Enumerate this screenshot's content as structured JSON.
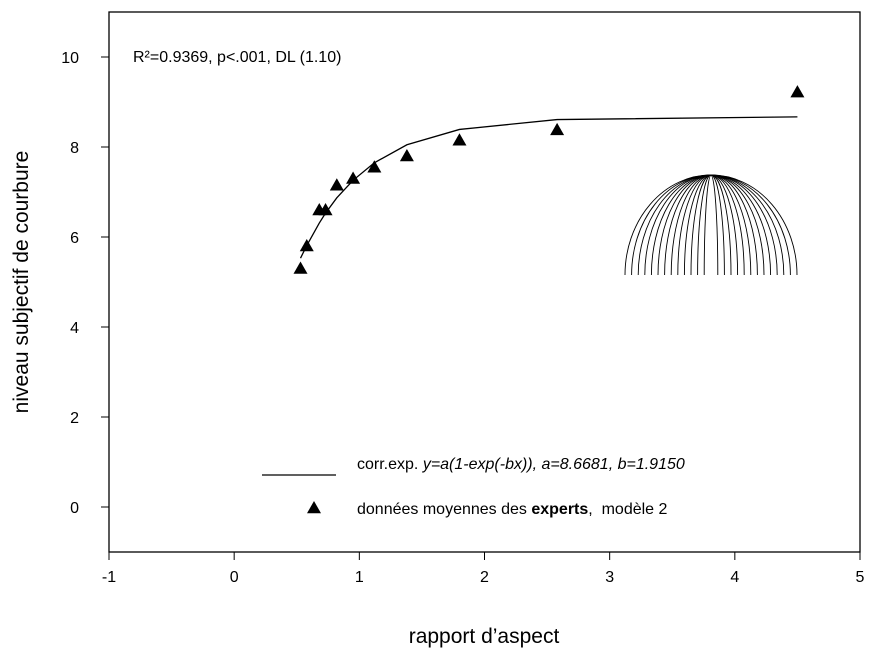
{
  "chart_data": {
    "type": "scatter",
    "annotation": "R²=0.9369, p<.001, DL (1.10)",
    "x_label": "rapport d’aspect",
    "y_label": "niveau subjectif de courbure",
    "xlim": [
      -1,
      5
    ],
    "ylim": [
      -1,
      11
    ],
    "xticks": [
      -1,
      0,
      1,
      2,
      3,
      4,
      5
    ],
    "yticks": [
      0,
      2,
      4,
      6,
      8,
      10
    ],
    "grid": false,
    "series": [
      {
        "type": "line",
        "color": "#000000",
        "name_parts": [
          {
            "text": "corr.exp. "
          },
          {
            "text": "y=a(1-exp(-bx)), a=8.6681, b=1.9150",
            "italic": true
          }
        ],
        "x": [
          0.53,
          0.58,
          0.68,
          0.73,
          0.82,
          0.95,
          1.12,
          1.38,
          1.8,
          2.58,
          4.5
        ],
        "values": [
          5.53,
          5.81,
          6.31,
          6.53,
          6.87,
          7.26,
          7.65,
          8.05,
          8.39,
          8.61,
          8.67
        ]
      },
      {
        "type": "scatter",
        "color": "#000000",
        "name_parts": [
          {
            "text": "données moyennes des "
          },
          {
            "text": "experts",
            "bold": true
          },
          {
            "text": ",  modèle 2"
          }
        ],
        "x": [
          0.53,
          0.58,
          0.68,
          0.73,
          0.82,
          0.95,
          1.12,
          1.38,
          1.8,
          2.58,
          4.5
        ],
        "values": [
          5.3,
          5.8,
          6.6,
          6.6,
          7.15,
          7.3,
          7.55,
          7.8,
          8.15,
          8.38,
          9.22
        ]
      }
    ]
  }
}
